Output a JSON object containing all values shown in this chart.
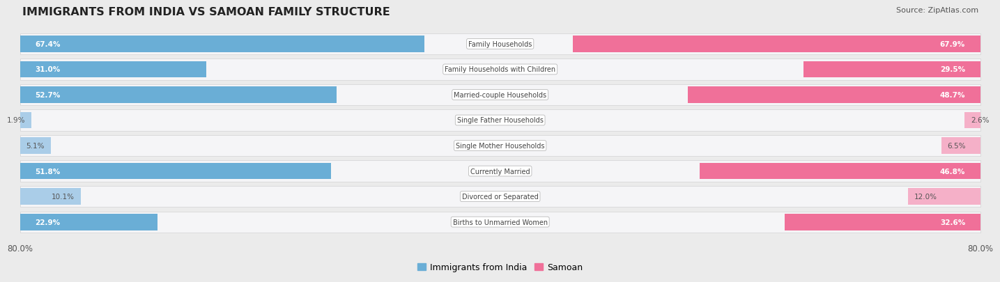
{
  "title": "IMMIGRANTS FROM INDIA VS SAMOAN FAMILY STRUCTURE",
  "source": "Source: ZipAtlas.com",
  "categories": [
    "Family Households",
    "Family Households with Children",
    "Married-couple Households",
    "Single Father Households",
    "Single Mother Households",
    "Currently Married",
    "Divorced or Separated",
    "Births to Unmarried Women"
  ],
  "india_values": [
    67.4,
    31.0,
    52.7,
    1.9,
    5.1,
    51.8,
    10.1,
    22.9
  ],
  "samoan_values": [
    67.9,
    29.5,
    48.7,
    2.6,
    6.5,
    46.8,
    12.0,
    32.6
  ],
  "india_color": "#6aaed6",
  "samoan_color": "#f07099",
  "india_color_light": "#aacde8",
  "samoan_color_light": "#f5b0c8",
  "axis_max": 80.0,
  "background_color": "#ebebeb",
  "row_bg_color": "#f5f5f5",
  "row_bg_dark": "#e8e8e8",
  "legend_india": "Immigrants from India",
  "legend_samoan": "Samoan",
  "india_label_thresh": 15.0,
  "samoan_label_thresh": 15.0
}
